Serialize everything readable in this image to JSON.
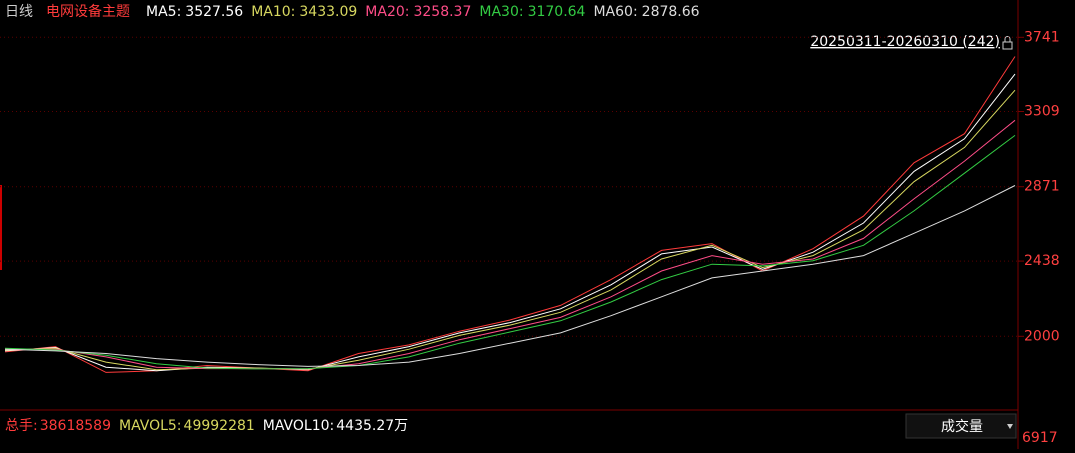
{
  "chart_data": {
    "type": "line",
    "period": "日线",
    "title": "电网设备主题",
    "indicators": [
      {
        "label": "MA5:",
        "value": 3527.56,
        "color": "#ffffff"
      },
      {
        "label": "MA10:",
        "value": 3433.09,
        "color": "#d8d860"
      },
      {
        "label": "MA20:",
        "value": 3258.37,
        "color": "#ff4d88"
      },
      {
        "label": "MA30:",
        "value": 3170.64,
        "color": "#33cc44"
      },
      {
        "label": "MA60:",
        "value": 2878.66,
        "color": "#dddddd"
      }
    ],
    "range_label": "20250311-20260310 (242)",
    "ylim": [
      1600,
      3900
    ],
    "yticks": [
      2000,
      2438,
      2871,
      3309,
      3741
    ],
    "grid": true,
    "series": [
      {
        "name": "Close",
        "color": "#ff3b3b",
        "values": [
          1909,
          1940,
          1790,
          1799,
          1830,
          1815,
          1800,
          1900,
          1950,
          2030,
          2095,
          2180,
          2330,
          2500,
          2540,
          2380,
          2510,
          2700,
          3010,
          3180,
          3629
        ]
      },
      {
        "name": "MA5",
        "color": "#ffffff",
        "values": [
          1915,
          1935,
          1820,
          1800,
          1820,
          1815,
          1805,
          1880,
          1940,
          2020,
          2080,
          2160,
          2300,
          2480,
          2520,
          2390,
          2490,
          2660,
          2960,
          3150,
          3527
        ]
      },
      {
        "name": "MA10",
        "color": "#d8d860",
        "values": [
          1920,
          1930,
          1850,
          1805,
          1815,
          1815,
          1808,
          1860,
          1925,
          2005,
          2065,
          2140,
          2270,
          2450,
          2530,
          2400,
          2470,
          2620,
          2900,
          3100,
          3433
        ]
      },
      {
        "name": "MA20",
        "color": "#ff4d88",
        "values": [
          1925,
          1925,
          1880,
          1820,
          1812,
          1812,
          1810,
          1840,
          1900,
          1980,
          2045,
          2110,
          2230,
          2380,
          2470,
          2420,
          2450,
          2570,
          2800,
          3020,
          3258
        ]
      },
      {
        "name": "MA30",
        "color": "#33cc44",
        "values": [
          1930,
          1920,
          1890,
          1840,
          1815,
          1810,
          1812,
          1830,
          1880,
          1960,
          2025,
          2090,
          2200,
          2330,
          2420,
          2410,
          2440,
          2530,
          2730,
          2950,
          3170
        ]
      },
      {
        "name": "MA60",
        "color": "#dddddd",
        "values": [
          1925,
          1915,
          1900,
          1870,
          1850,
          1835,
          1825,
          1830,
          1850,
          1900,
          1960,
          2020,
          2120,
          2230,
          2340,
          2380,
          2420,
          2470,
          2600,
          2730,
          2878
        ]
      }
    ],
    "volume": {
      "items": [
        {
          "label": "总手:",
          "value": 38618589,
          "color": "#ff3b3b"
        },
        {
          "label": "MAVOL5:",
          "value": 49992281,
          "color": "#d8d860"
        },
        {
          "label": "MAVOL10:",
          "value": "4435.27万",
          "color": "#ffffff"
        }
      ],
      "selector": "成交量",
      "axis_label": 6917
    }
  }
}
